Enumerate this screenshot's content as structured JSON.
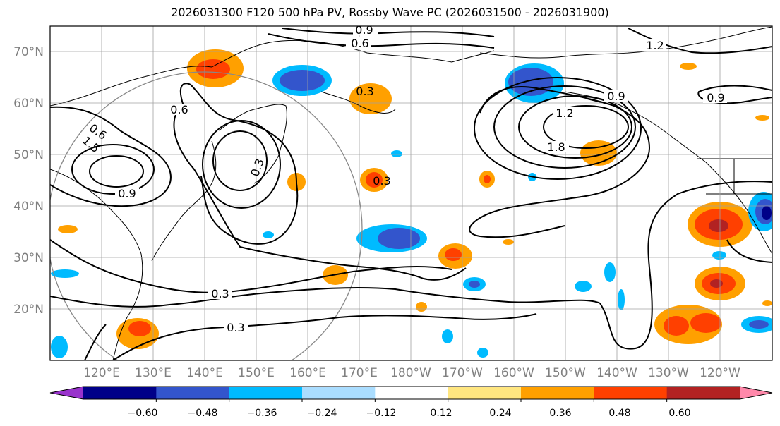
{
  "title": "2026031300 F120 500 hPa PV, Rossby Wave PC (2026031500 - 2026031900)",
  "lat_labels": [
    "70°N",
    "60°N",
    "50°N",
    "40°N",
    "30°N",
    "20°N"
  ],
  "lon_labels": [
    "120°E",
    "130°E",
    "140°E",
    "150°E",
    "160°E",
    "170°E",
    "180°W",
    "170°W",
    "160°W",
    "150°W",
    "140°W",
    "130°W",
    "120°W"
  ],
  "colorbar": {
    "ticks": [
      "−0.60",
      "−0.48",
      "−0.36",
      "−0.24",
      "−0.12",
      "0.12",
      "0.24",
      "0.36",
      "0.48",
      "0.60"
    ],
    "colors": [
      "#9933cc",
      "#000088",
      "#3355cc",
      "#00bbff",
      "#aaddff",
      "#ffffff",
      "#ffe680",
      "#ffa000",
      "#ff4000",
      "#b22222",
      "#ff88aa"
    ]
  },
  "contour_labels": [
    "0.9",
    "0.6",
    "1.2",
    "0.6",
    "0.3",
    "0.3",
    "0.9",
    "0.9",
    "1.2",
    "1.8",
    "0.6",
    "0.3",
    "0.3",
    "1.5",
    "0.9",
    "0.3"
  ],
  "colors": {
    "grid": "#a0a0a0",
    "label_gray": "#808080",
    "contour": "#000000",
    "circle": "#888888"
  }
}
